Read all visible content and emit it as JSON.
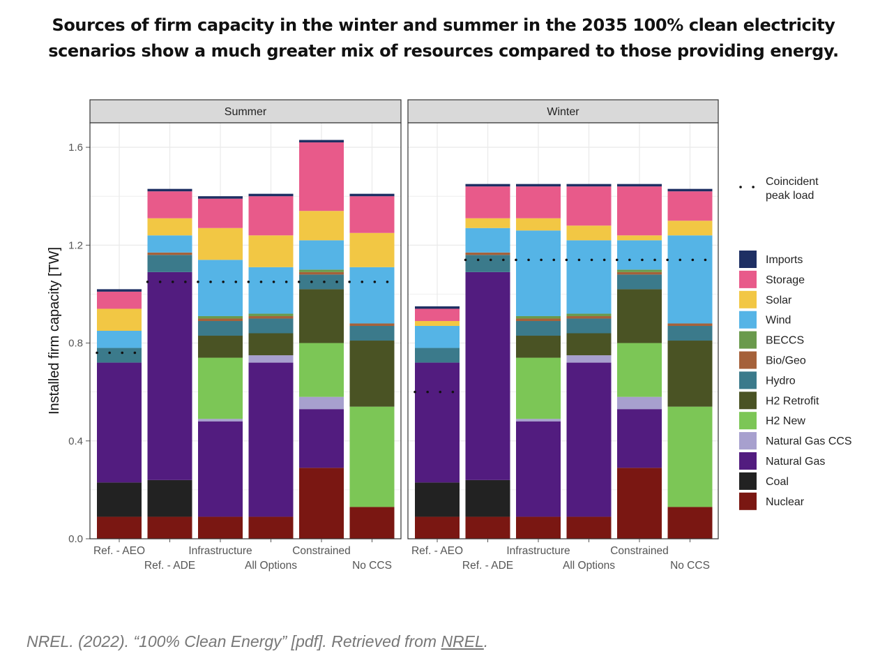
{
  "title": {
    "line1": "Sources of firm capacity in the winter and summer in the 2035 100% clean electricity",
    "line2": "scenarios show a much greater mix of resources compared to those providing energy."
  },
  "caption": {
    "prefix": "NREL. (2022). “100% Clean Energy” [pdf]. Retrieved from ",
    "link": "NREL",
    "suffix": "."
  },
  "chart_data": {
    "type": "bar",
    "stacked": true,
    "ylabel": "Installed firm capacity [TW]",
    "xlabel": "",
    "ylim": [
      0,
      1.7
    ],
    "yticks": [
      0.0,
      0.4,
      0.8,
      1.2,
      1.6
    ],
    "ytick_labels": [
      "0.0",
      "0.4",
      "0.8",
      "1.2",
      "1.6"
    ],
    "grid": true,
    "legend_position": "right",
    "categories": [
      "Ref. - AEO",
      "Ref. - ADE",
      "Infrastructure",
      "All Options",
      "Constrained",
      "No CCS"
    ],
    "panels": [
      {
        "name": "Summer",
        "series": [
          {
            "name": "Nuclear",
            "color": "#7a1712",
            "values": [
              0.09,
              0.09,
              0.09,
              0.09,
              0.29,
              0.13
            ]
          },
          {
            "name": "Coal",
            "color": "#222222",
            "values": [
              0.14,
              0.15,
              0.0,
              0.0,
              0.0,
              0.0
            ]
          },
          {
            "name": "Natural Gas",
            "color": "#521c7f",
            "values": [
              0.49,
              0.85,
              0.39,
              0.63,
              0.24,
              0.0
            ]
          },
          {
            "name": "Natural Gas CCS",
            "color": "#a7a0ce",
            "values": [
              0.0,
              0.0,
              0.01,
              0.03,
              0.05,
              0.0
            ]
          },
          {
            "name": "H2 New",
            "color": "#7cc656",
            "values": [
              0.0,
              0.0,
              0.25,
              0.0,
              0.22,
              0.41
            ]
          },
          {
            "name": "H2 Retrofit",
            "color": "#4a5324",
            "values": [
              0.0,
              0.0,
              0.09,
              0.09,
              0.22,
              0.27
            ]
          },
          {
            "name": "Hydro",
            "color": "#3b7a8b",
            "values": [
              0.06,
              0.07,
              0.06,
              0.06,
              0.06,
              0.06
            ]
          },
          {
            "name": "Bio/Geo",
            "color": "#a5613a",
            "values": [
              0.0,
              0.01,
              0.01,
              0.01,
              0.01,
              0.01
            ]
          },
          {
            "name": "BECCS",
            "color": "#6a9a4c",
            "values": [
              0.0,
              0.0,
              0.01,
              0.01,
              0.01,
              0.0
            ]
          },
          {
            "name": "Wind",
            "color": "#55b4e6",
            "values": [
              0.07,
              0.07,
              0.23,
              0.19,
              0.12,
              0.23
            ]
          },
          {
            "name": "Solar",
            "color": "#f2c744",
            "values": [
              0.09,
              0.07,
              0.13,
              0.13,
              0.12,
              0.14
            ]
          },
          {
            "name": "Storage",
            "color": "#e85a8a",
            "values": [
              0.07,
              0.11,
              0.12,
              0.16,
              0.28,
              0.15
            ]
          },
          {
            "name": "Imports",
            "color": "#1e2f63",
            "values": [
              0.01,
              0.01,
              0.01,
              0.01,
              0.01,
              0.01
            ]
          }
        ],
        "coincident_peak_load": [
          {
            "from": 0,
            "to": 0,
            "value": 0.76
          },
          {
            "from": 1,
            "to": 5,
            "value": 1.05
          }
        ]
      },
      {
        "name": "Winter",
        "series": [
          {
            "name": "Nuclear",
            "color": "#7a1712",
            "values": [
              0.09,
              0.09,
              0.09,
              0.09,
              0.29,
              0.13
            ]
          },
          {
            "name": "Coal",
            "color": "#222222",
            "values": [
              0.14,
              0.15,
              0.0,
              0.0,
              0.0,
              0.0
            ]
          },
          {
            "name": "Natural Gas",
            "color": "#521c7f",
            "values": [
              0.49,
              0.85,
              0.39,
              0.63,
              0.24,
              0.0
            ]
          },
          {
            "name": "Natural Gas CCS",
            "color": "#a7a0ce",
            "values": [
              0.0,
              0.0,
              0.01,
              0.03,
              0.05,
              0.0
            ]
          },
          {
            "name": "H2 New",
            "color": "#7cc656",
            "values": [
              0.0,
              0.0,
              0.25,
              0.0,
              0.22,
              0.41
            ]
          },
          {
            "name": "H2 Retrofit",
            "color": "#4a5324",
            "values": [
              0.0,
              0.0,
              0.09,
              0.09,
              0.22,
              0.27
            ]
          },
          {
            "name": "Hydro",
            "color": "#3b7a8b",
            "values": [
              0.06,
              0.07,
              0.06,
              0.06,
              0.06,
              0.06
            ]
          },
          {
            "name": "Bio/Geo",
            "color": "#a5613a",
            "values": [
              0.0,
              0.01,
              0.01,
              0.01,
              0.01,
              0.01
            ]
          },
          {
            "name": "BECCS",
            "color": "#6a9a4c",
            "values": [
              0.0,
              0.0,
              0.01,
              0.01,
              0.01,
              0.0
            ]
          },
          {
            "name": "Wind",
            "color": "#55b4e6",
            "values": [
              0.09,
              0.1,
              0.35,
              0.3,
              0.12,
              0.36
            ]
          },
          {
            "name": "Solar",
            "color": "#f2c744",
            "values": [
              0.02,
              0.04,
              0.05,
              0.06,
              0.02,
              0.06
            ]
          },
          {
            "name": "Storage",
            "color": "#e85a8a",
            "values": [
              0.05,
              0.13,
              0.13,
              0.16,
              0.2,
              0.12
            ]
          },
          {
            "name": "Imports",
            "color": "#1e2f63",
            "values": [
              0.01,
              0.01,
              0.01,
              0.01,
              0.01,
              0.01
            ]
          }
        ],
        "coincident_peak_load": [
          {
            "from": 0,
            "to": 0,
            "value": 0.6
          },
          {
            "from": 1,
            "to": 5,
            "value": 1.14
          }
        ]
      }
    ],
    "legend": {
      "peak_label_line1": "Coincident",
      "peak_label_line2": "peak load",
      "items": [
        {
          "name": "Imports",
          "color": "#1e2f63"
        },
        {
          "name": "Storage",
          "color": "#e85a8a"
        },
        {
          "name": "Solar",
          "color": "#f2c744"
        },
        {
          "name": "Wind",
          "color": "#55b4e6"
        },
        {
          "name": "BECCS",
          "color": "#6a9a4c"
        },
        {
          "name": "Bio/Geo",
          "color": "#a5613a"
        },
        {
          "name": "Hydro",
          "color": "#3b7a8b"
        },
        {
          "name": "H2 Retrofit",
          "color": "#4a5324"
        },
        {
          "name": "H2 New",
          "color": "#7cc656"
        },
        {
          "name": "Natural Gas CCS",
          "color": "#a7a0ce"
        },
        {
          "name": "Natural Gas",
          "color": "#521c7f"
        },
        {
          "name": "Coal",
          "color": "#222222"
        },
        {
          "name": "Nuclear",
          "color": "#7a1712"
        }
      ]
    }
  }
}
